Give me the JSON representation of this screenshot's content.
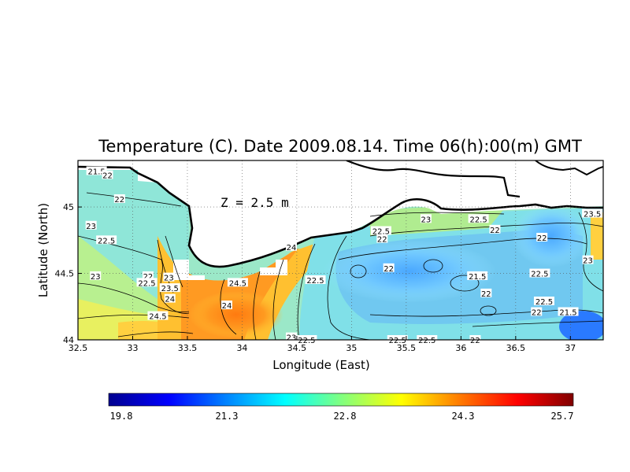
{
  "chart_data": {
    "type": "heatmap",
    "title": "Temperature (C). Date 2009.08.14. Time 06(h):00(m) GMT",
    "annotation": "Z = 2.5 m",
    "xlabel": "Longitude (East)",
    "ylabel": "Latitude (North)",
    "xlim": [
      32.5,
      37.3
    ],
    "ylim": [
      44.0,
      45.35
    ],
    "x_ticks": [
      "32.5",
      "33",
      "33.5",
      "34",
      "34.5",
      "35",
      "35.5",
      "36",
      "36.5",
      "37"
    ],
    "x_tick_values": [
      32.5,
      33,
      33.5,
      34,
      34.5,
      35,
      35.5,
      36,
      36.5,
      37
    ],
    "y_ticks": [
      "44",
      "44.5",
      "45"
    ],
    "y_tick_values": [
      44.0,
      44.5,
      45.0
    ],
    "grid": "dotted",
    "colorbar": {
      "min": 19.8,
      "max": 25.7,
      "tick_labels": [
        "19.8",
        "21.3",
        "22.8",
        "24.3",
        "25.7"
      ],
      "tick_values": [
        19.8,
        21.3,
        22.8,
        24.3,
        25.7
      ]
    },
    "contour_labels": [
      {
        "text": "21.5",
        "lon": 32.67,
        "lat": 45.27
      },
      {
        "text": "22",
        "lon": 32.77,
        "lat": 45.24
      },
      {
        "text": "22",
        "lon": 32.88,
        "lat": 45.06
      },
      {
        "text": "23",
        "lon": 32.62,
        "lat": 44.86
      },
      {
        "text": "22.5",
        "lon": 32.76,
        "lat": 44.75
      },
      {
        "text": "23",
        "lon": 32.66,
        "lat": 44.48
      },
      {
        "text": "22",
        "lon": 33.14,
        "lat": 44.48
      },
      {
        "text": "23",
        "lon": 33.33,
        "lat": 44.47
      },
      {
        "text": "22.5",
        "lon": 33.13,
        "lat": 44.43
      },
      {
        "text": "23.5",
        "lon": 33.34,
        "lat": 44.39
      },
      {
        "text": "24",
        "lon": 33.34,
        "lat": 44.31
      },
      {
        "text": "24.5",
        "lon": 33.23,
        "lat": 44.18
      },
      {
        "text": "24.5",
        "lon": 33.96,
        "lat": 44.43
      },
      {
        "text": "24",
        "lon": 33.86,
        "lat": 44.26
      },
      {
        "text": "24",
        "lon": 34.45,
        "lat": 44.7
      },
      {
        "text": "22.5",
        "lon": 34.67,
        "lat": 44.45
      },
      {
        "text": "23",
        "lon": 34.45,
        "lat": 44.02
      },
      {
        "text": "22.5",
        "lon": 34.59,
        "lat": 44.0
      },
      {
        "text": "22.5",
        "lon": 35.27,
        "lat": 44.82
      },
      {
        "text": "22",
        "lon": 35.28,
        "lat": 44.76
      },
      {
        "text": "23",
        "lon": 35.68,
        "lat": 44.91
      },
      {
        "text": "22.5",
        "lon": 36.16,
        "lat": 44.91
      },
      {
        "text": "22",
        "lon": 36.31,
        "lat": 44.83
      },
      {
        "text": "22",
        "lon": 35.34,
        "lat": 44.54
      },
      {
        "text": "21.5",
        "lon": 36.15,
        "lat": 44.48
      },
      {
        "text": "22",
        "lon": 36.23,
        "lat": 44.35
      },
      {
        "text": "22",
        "lon": 36.74,
        "lat": 44.77
      },
      {
        "text": "22.5",
        "lon": 36.72,
        "lat": 44.5
      },
      {
        "text": "22.5",
        "lon": 36.76,
        "lat": 44.29
      },
      {
        "text": "22",
        "lon": 36.69,
        "lat": 44.21
      },
      {
        "text": "21.5",
        "lon": 36.98,
        "lat": 44.21
      },
      {
        "text": "23.5",
        "lon": 37.2,
        "lat": 44.95
      },
      {
        "text": "23",
        "lon": 37.16,
        "lat": 44.6
      },
      {
        "text": "22",
        "lon": 36.13,
        "lat": 44.0
      },
      {
        "text": "22.5",
        "lon": 35.42,
        "lat": 44.0
      },
      {
        "text": "22.5",
        "lon": 35.69,
        "lat": 44.0
      }
    ]
  }
}
